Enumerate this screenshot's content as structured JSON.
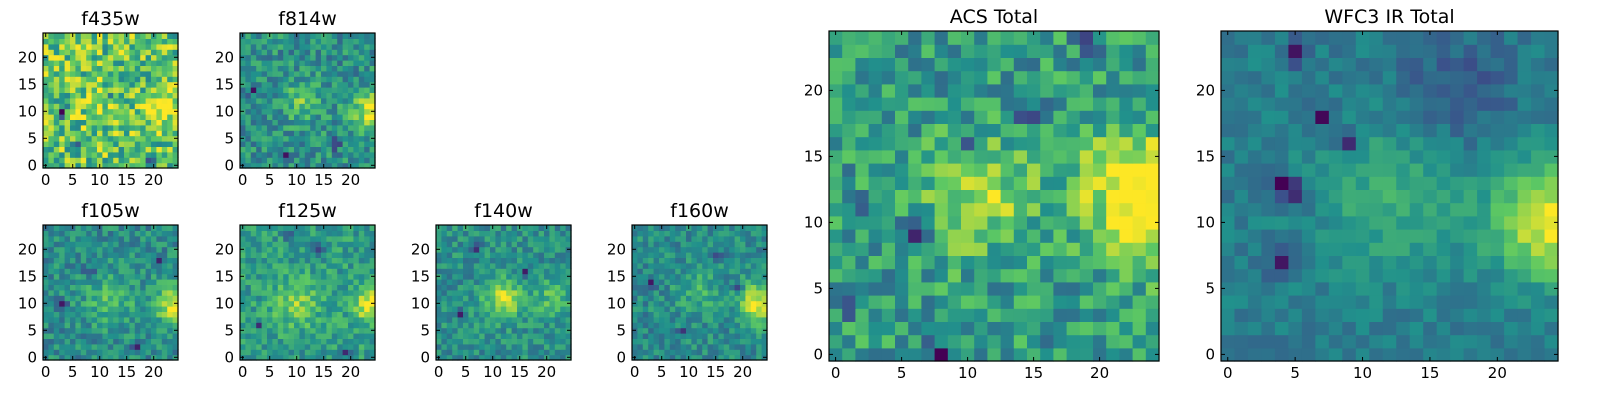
{
  "figure": {
    "colormap": "viridis",
    "colormap_stops": [
      "#440154",
      "#3b528b",
      "#21918c",
      "#5ec962",
      "#fde725"
    ]
  },
  "chart_data": [
    {
      "type": "heatmap",
      "title": "f435w",
      "grid": false,
      "xlim": [
        -0.5,
        24.5
      ],
      "ylim": [
        -0.5,
        24.5
      ],
      "xticks": [
        0,
        5,
        10,
        15,
        20
      ],
      "yticks": [
        0,
        5,
        10,
        15,
        20
      ],
      "size": 25,
      "pattern": {
        "base": 0.72,
        "noise": 0.55,
        "seed": 11,
        "blobs": [
          [
            22,
            10,
            2.5,
            0.25
          ],
          [
            10,
            12,
            3,
            0.1
          ]
        ],
        "lows": [
          [
            3,
            10,
            0.6
          ],
          [
            19,
            1,
            0.6
          ],
          [
            12,
            13,
            0.5
          ],
          [
            6,
            4,
            0.45
          ]
        ]
      }
    },
    {
      "type": "heatmap",
      "title": "f814w",
      "grid": false,
      "xlim": [
        -0.5,
        24.5
      ],
      "ylim": [
        -0.5,
        24.5
      ],
      "xticks": [
        0,
        5,
        10,
        15,
        20
      ],
      "yticks": [
        0,
        5,
        10,
        15,
        20
      ],
      "size": 25,
      "pattern": {
        "base": 0.5,
        "noise": 0.35,
        "seed": 23,
        "blobs": [
          [
            24,
            10,
            2.5,
            0.5
          ],
          [
            11,
            12,
            2.5,
            0.25
          ]
        ],
        "lows": [
          [
            2,
            14,
            0.35
          ],
          [
            17,
            4,
            0.35
          ],
          [
            8,
            2,
            0.3
          ]
        ]
      }
    },
    {
      "type": "heatmap",
      "title": "ACS Total",
      "grid": false,
      "xlim": [
        -0.5,
        24.5
      ],
      "ylim": [
        -0.5,
        24.5
      ],
      "xticks": [
        0,
        5,
        10,
        15,
        20
      ],
      "yticks": [
        0,
        5,
        10,
        15,
        20
      ],
      "size": 25,
      "pattern": {
        "base": 0.55,
        "noise": 0.4,
        "seed": 37,
        "blobs": [
          [
            24,
            11,
            3,
            0.5
          ],
          [
            11,
            12,
            3,
            0.3
          ],
          [
            22,
            14,
            3,
            0.2
          ]
        ],
        "lows": [
          [
            8,
            0,
            0.5
          ],
          [
            15,
            18,
            0.45
          ],
          [
            1,
            4,
            0.45
          ],
          [
            19,
            24,
            0.45
          ],
          [
            2,
            11,
            0.45
          ],
          [
            6,
            9,
            0.45
          ],
          [
            10,
            16,
            0.45
          ]
        ]
      }
    },
    {
      "type": "heatmap",
      "title": "f105w",
      "grid": false,
      "xlim": [
        -0.5,
        24.5
      ],
      "ylim": [
        -0.5,
        24.5
      ],
      "xticks": [
        0,
        5,
        10,
        15,
        20
      ],
      "yticks": [
        0,
        5,
        10,
        15,
        20
      ],
      "size": 25,
      "pattern": {
        "base": 0.48,
        "noise": 0.3,
        "seed": 41,
        "blobs": [
          [
            24,
            10,
            2.5,
            0.5
          ],
          [
            12,
            11,
            3.5,
            0.2
          ]
        ],
        "lows": [
          [
            8,
            16,
            0.35
          ],
          [
            3,
            10,
            0.35
          ],
          [
            17,
            2,
            0.3
          ],
          [
            21,
            18,
            0.3
          ]
        ]
      }
    },
    {
      "type": "heatmap",
      "title": "f125w",
      "grid": false,
      "xlim": [
        -0.5,
        24.5
      ],
      "ylim": [
        -0.5,
        24.5
      ],
      "xticks": [
        0,
        5,
        10,
        15,
        20
      ],
      "yticks": [
        0,
        5,
        10,
        15,
        20
      ],
      "size": 25,
      "pattern": {
        "base": 0.55,
        "noise": 0.3,
        "seed": 53,
        "blobs": [
          [
            24,
            10,
            2.5,
            0.45
          ],
          [
            10,
            10,
            3,
            0.25
          ]
        ],
        "lows": [
          [
            14,
            20,
            0.4
          ],
          [
            8,
            23,
            0.35
          ],
          [
            3,
            6,
            0.3
          ],
          [
            19,
            1,
            0.3
          ]
        ]
      }
    },
    {
      "type": "heatmap",
      "title": "f140w",
      "grid": false,
      "xlim": [
        -0.5,
        24.5
      ],
      "ylim": [
        -0.5,
        24.5
      ],
      "xticks": [
        0,
        5,
        10,
        15,
        20
      ],
      "yticks": [
        0,
        5,
        10,
        15,
        20
      ],
      "size": 25,
      "pattern": {
        "base": 0.5,
        "noise": 0.28,
        "seed": 67,
        "blobs": [
          [
            12,
            11,
            2.5,
            0.4
          ],
          [
            21,
            11,
            2.5,
            0.2
          ]
        ],
        "lows": [
          [
            4,
            8,
            0.45
          ],
          [
            16,
            16,
            0.35
          ],
          [
            7,
            20,
            0.3
          ]
        ]
      }
    },
    {
      "type": "heatmap",
      "title": "f160w",
      "grid": false,
      "xlim": [
        -0.5,
        24.5
      ],
      "ylim": [
        -0.5,
        24.5
      ],
      "xticks": [
        0,
        5,
        10,
        15,
        20
      ],
      "yticks": [
        0,
        5,
        10,
        15,
        20
      ],
      "size": 25,
      "pattern": {
        "base": 0.48,
        "noise": 0.28,
        "seed": 79,
        "blobs": [
          [
            23,
            10,
            2.5,
            0.5
          ],
          [
            12,
            12,
            3,
            0.15
          ]
        ],
        "lows": [
          [
            3,
            14,
            0.45
          ],
          [
            15,
            19,
            0.35
          ],
          [
            9,
            5,
            0.3
          ],
          [
            19,
            13,
            0.3
          ]
        ]
      }
    },
    {
      "type": "heatmap",
      "title": "WFC3 IR Total",
      "grid": false,
      "xlim": [
        -0.5,
        24.5
      ],
      "ylim": [
        -0.5,
        24.5
      ],
      "xticks": [
        0,
        5,
        10,
        15,
        20
      ],
      "yticks": [
        0,
        5,
        10,
        15,
        20
      ],
      "size": 25,
      "pattern": {
        "base": 0.42,
        "noise": 0.16,
        "seed": 97,
        "blobs": [
          [
            24,
            10,
            3,
            0.55
          ],
          [
            12,
            12,
            4,
            0.2
          ],
          [
            17,
            20,
            3,
            -0.15
          ]
        ],
        "lows": [
          [
            4,
            13,
            0.4
          ],
          [
            5,
            12,
            0.35
          ],
          [
            4,
            7,
            0.4
          ],
          [
            9,
            16,
            0.35
          ],
          [
            7,
            18,
            0.35
          ],
          [
            5,
            23,
            0.3
          ]
        ]
      }
    }
  ]
}
